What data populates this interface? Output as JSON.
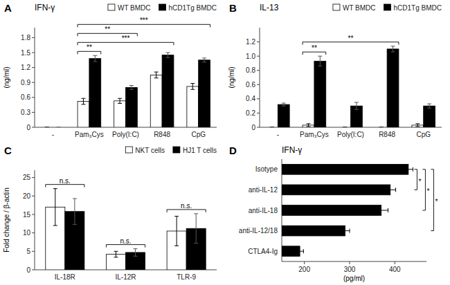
{
  "chart_data": [
    {
      "type": "bar",
      "title": "IFN-γ",
      "ylabel": "(ng/ml)",
      "categories": [
        "-",
        "Pam₃Cys",
        "Poly(I:C)",
        "R848",
        "CpG"
      ],
      "series": [
        {
          "name": "WT BMDC",
          "color": "#ffffff",
          "values": [
            0.0,
            0.52,
            0.53,
            1.05,
            0.82
          ],
          "errors": [
            0.0,
            0.06,
            0.05,
            0.06,
            0.06
          ]
        },
        {
          "name": "hCD1Tg BMDC",
          "color": "#000000",
          "values": [
            0.0,
            1.38,
            0.8,
            1.45,
            1.35
          ],
          "errors": [
            0.0,
            0.06,
            0.04,
            0.05,
            0.04
          ]
        }
      ],
      "ylim": [
        0,
        2.0
      ],
      "yticks": [
        0,
        0.3,
        0.6,
        0.9,
        1.2,
        1.5,
        1.8
      ],
      "legend": "upper right",
      "annotations": [
        {
          "text": "A"
        },
        {
          "text": "**",
          "from": "Pam₃Cys",
          "to": "Pam₃Cys"
        },
        {
          "text": "***",
          "from": "Pam₃Cys",
          "to": "R848"
        },
        {
          "text": "**",
          "from": "Pam₃Cys",
          "to": "Poly(I:C)"
        },
        {
          "text": "***",
          "from": "Pam₃Cys",
          "to": "CpG"
        }
      ]
    },
    {
      "type": "bar",
      "title": "IL-13",
      "ylabel": "(ng/ml)",
      "categories": [
        "-",
        "Pam₃Cys",
        "Poly(I:C)",
        "R848",
        "CpG"
      ],
      "series": [
        {
          "name": "WT BMDC",
          "color": "#ffffff",
          "values": [
            0.0,
            0.03,
            0.0,
            0.0,
            0.03
          ],
          "errors": [
            0.0,
            0.02,
            0.0,
            0.0,
            0.02
          ]
        },
        {
          "name": "hCD1Tg BMDC",
          "color": "#000000",
          "values": [
            0.32,
            0.93,
            0.3,
            1.1,
            0.3
          ],
          "errors": [
            0.02,
            0.07,
            0.05,
            0.04,
            0.03
          ]
        }
      ],
      "ylim": [
        0,
        1.4
      ],
      "yticks": [
        0,
        0.2,
        0.4,
        0.6,
        0.8,
        {
          "value": 1.0,
          "label": "1.0"
        },
        1.2
      ],
      "legend": "upper right",
      "annotations": [
        {
          "text": "B"
        },
        {
          "text": "**",
          "from": "Pam₃Cys",
          "to": "Pam₃Cys"
        },
        {
          "text": "**",
          "from": "Pam₃Cys",
          "to": "R848"
        }
      ]
    },
    {
      "type": "bar",
      "ylabel": "Fold change / β-actin",
      "categories": [
        "IL-18R",
        "IL-12R",
        "TLR-9"
      ],
      "series": [
        {
          "name": "NKT cells",
          "color": "#ffffff",
          "values": [
            17.0,
            4.2,
            10.5
          ],
          "errors": [
            5.0,
            0.8,
            4.0
          ]
        },
        {
          "name": "HJ1 T cells",
          "color": "#000000",
          "values": [
            15.8,
            4.7,
            11.2
          ],
          "errors": [
            3.5,
            1.0,
            4.0
          ]
        }
      ],
      "ylim": [
        0,
        27
      ],
      "yticks": [
        0,
        5,
        10,
        15,
        20,
        25
      ],
      "legend": "upper right",
      "annotations": [
        {
          "text": "C"
        },
        {
          "text": "n.s.",
          "from": "IL-18R",
          "to": "IL-18R"
        },
        {
          "text": "n.s.",
          "from": "IL-12R",
          "to": "IL-12R"
        },
        {
          "text": "n.s.",
          "from": "TLR-9",
          "to": "TLR-9"
        }
      ]
    },
    {
      "type": "bar",
      "orientation": "horizontal",
      "title": "IFN-γ",
      "xlabel": "(pg/ml)",
      "categories": [
        "Isotype",
        "anti-IL-12",
        "anti-IL-18",
        "anti-IL-12/18",
        "CTLA4-Ig"
      ],
      "values": [
        430,
        390,
        370,
        290,
        190
      ],
      "errors": [
        10,
        12,
        15,
        10,
        8
      ],
      "color": "#000000",
      "xlim": [
        150,
        470
      ],
      "xticks": [
        200,
        300,
        400
      ],
      "annotations": [
        {
          "text": "D"
        },
        {
          "text": "*",
          "from": "Isotype",
          "to": "anti-IL-12"
        },
        {
          "text": "*",
          "from": "Isotype",
          "to": "anti-IL-18"
        },
        {
          "text": "*",
          "from": "Isotype",
          "to": "anti-IL-12/18"
        }
      ]
    }
  ]
}
